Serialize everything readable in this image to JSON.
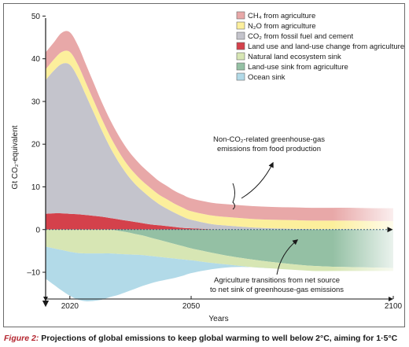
{
  "chart_data": {
    "type": "area",
    "title": "",
    "xlabel": "Years",
    "ylabel": "Gt CO₂-equivalent",
    "xlim": [
      2014,
      2100
    ],
    "ylim": [
      -17,
      51
    ],
    "x_ticks": [
      2020,
      2050,
      2100
    ],
    "y_ticks": [
      -10,
      0,
      10,
      20,
      30,
      40,
      50
    ],
    "grid": false,
    "legend_position": "top-right",
    "x": [
      2014,
      2016,
      2018,
      2020,
      2022,
      2024,
      2026,
      2028,
      2030,
      2032,
      2034,
      2036,
      2038,
      2040,
      2042,
      2044,
      2046,
      2048,
      2050,
      2055,
      2060,
      2065,
      2070,
      2075,
      2080,
      2085,
      2090,
      2095,
      2100
    ],
    "series": [
      {
        "name": "CH₄ from agriculture",
        "color": "#e8a8a8",
        "values": [
          4,
          4,
          4.5,
          4.6,
          4.5,
          4.3,
          4.1,
          3.9,
          3.8,
          3.7,
          3.6,
          3.5,
          3.4,
          3.3,
          3.2,
          3.1,
          3.0,
          3.0,
          3.0,
          3.0,
          3.0,
          3.0,
          3.0,
          3.0,
          3.0,
          3.0,
          3.0,
          3.0,
          3.0
        ]
      },
      {
        "name": "N₂O from agriculture",
        "color": "#fcef9c",
        "values": [
          2.5,
          2.6,
          2.8,
          3.0,
          3.0,
          2.9,
          2.8,
          2.7,
          2.6,
          2.5,
          2.4,
          2.4,
          2.3,
          2.3,
          2.2,
          2.2,
          2.1,
          2.1,
          2.0,
          2.0,
          2.0,
          2.0,
          2.0,
          2.0,
          2.0,
          2.0,
          2.0,
          2.0,
          2.0
        ]
      },
      {
        "name": "CO₂ from fossil fuel and cement",
        "color": "#c4c4cc",
        "values": [
          31.3,
          33.4,
          35,
          34.9,
          32,
          28,
          24,
          20,
          16.5,
          13.5,
          11,
          9,
          7.5,
          6.2,
          5.0,
          4.1,
          3.3,
          2.6,
          2.0,
          1.2,
          0.8,
          0.5,
          0.3,
          0.2,
          0.1,
          0.1,
          0.1,
          0.0,
          0.0
        ]
      },
      {
        "name": "Land use and land-use change from agriculture",
        "color": "#d4414b",
        "values": [
          3.7,
          3.8,
          3.8,
          3.7,
          3.6,
          3.4,
          3.2,
          3.0,
          2.7,
          2.4,
          2.1,
          1.8,
          1.5,
          1.2,
          1.0,
          0.8,
          0.6,
          0.4,
          0.3,
          0.1,
          0.05,
          0,
          0,
          0,
          0,
          0,
          0,
          0,
          0
        ]
      },
      {
        "name": "Natural land ecosystem sink",
        "color": "#d7e6b4",
        "values": [
          -4.0,
          -4.4,
          -4.8,
          -5.2,
          -5.5,
          -5.6,
          -5.6,
          -5.6,
          -5.6,
          -5.4,
          -5.2,
          -4.9,
          -4.6,
          -4.3,
          -4.0,
          -3.7,
          -3.4,
          -3.1,
          -2.8,
          -2.4,
          -2.0,
          -1.8,
          -1.5,
          -1.3,
          -1.2,
          -1.0,
          -0.9,
          -0.8,
          -0.7
        ]
      },
      {
        "name": "Land-use sink from agriculture",
        "color": "#94c0a4",
        "values": [
          0,
          0,
          0,
          0,
          0,
          0,
          0,
          0,
          0,
          -0.3,
          -0.6,
          -1.0,
          -1.4,
          -1.9,
          -2.4,
          -2.9,
          -3.4,
          -3.9,
          -4.4,
          -5.4,
          -6.3,
          -7.0,
          -7.6,
          -8.1,
          -8.5,
          -8.7,
          -8.8,
          -8.9,
          -9.0
        ]
      },
      {
        "name": "Ocean sink",
        "color": "#b2dae8",
        "values": [
          -7.5,
          -8.5,
          -9.5,
          -10.3,
          -10.9,
          -11.2,
          -11.1,
          -10.8,
          -10.2,
          -9.6,
          -8.8,
          -8.0,
          -7.2,
          -6.4,
          -5.7,
          -5.1,
          -4.5,
          -3.8,
          -3.0,
          -1.5,
          -0.5,
          0,
          0,
          0,
          0,
          0,
          0,
          0,
          0
        ]
      }
    ],
    "annotations": [
      {
        "lines": [
          "Non-CO₂-related greenhouse-gas",
          "emissions from food production"
        ]
      },
      {
        "lines": [
          "Agriculture transitions from net source",
          "to net sink of greenhouse-gas emissions"
        ]
      }
    ]
  },
  "caption": {
    "prefix": "Figure 2:",
    "text": " Projections of global emissions to keep global warming to well below 2°C, aiming for 1·5°C"
  }
}
